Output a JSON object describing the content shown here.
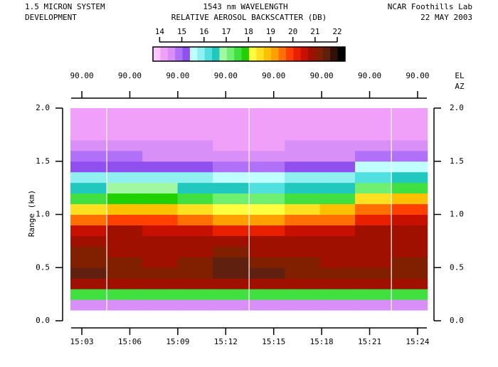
{
  "chart_data": {
    "type": "heatmap",
    "header_left": [
      "1.5 MICRON SYSTEM",
      "DEVELOPMENT"
    ],
    "title": "1543 nm WAVELENGTH",
    "subtitle": "RELATIVE AEROSOL BACKSCATTER (DB)",
    "header_right": [
      "NCAR Foothills Lab",
      "22 MAY 2003"
    ],
    "ylabel": "Range (km)",
    "top_axis_labels": [
      "90.00",
      "90.00",
      "90.00",
      "90.00",
      "90.00",
      "90.00",
      "90.00",
      "90.00"
    ],
    "top_axis_names": [
      "EL",
      "AZ"
    ],
    "colorbar": {
      "lim": [
        13.7,
        22.35
      ],
      "ticks": [
        14,
        15,
        16,
        17,
        18,
        19,
        20,
        21,
        22
      ],
      "colors": [
        "#ffc8ff",
        "#f0a0f8",
        "#d890f8",
        "#b070f8",
        "#9050f0",
        "#c0ffff",
        "#90f0f0",
        "#50e0e0",
        "#20c8c0",
        "#a0f8a0",
        "#70f070",
        "#40e040",
        "#20d000",
        "#ffff40",
        "#ffe020",
        "#ffc000",
        "#ffa000",
        "#ff7000",
        "#ff4000",
        "#e82000",
        "#c81000",
        "#a01000",
        "#802000",
        "#602010",
        "#301008",
        "#000000"
      ]
    },
    "x": [
      903.4,
      905.7,
      907.9,
      910.1,
      912.3,
      914.6,
      916.8,
      919.0,
      921.2,
      923.5
    ],
    "xlim": [
      902.33,
      924.58
    ],
    "xticks": [
      {
        "value": 903,
        "label": "15:03"
      },
      {
        "value": 906,
        "label": "15:06"
      },
      {
        "value": 909,
        "label": "15:09"
      },
      {
        "value": 912,
        "label": "15:12"
      },
      {
        "value": 915,
        "label": "15:15"
      },
      {
        "value": 918,
        "label": "15:18"
      },
      {
        "value": 921,
        "label": "15:21"
      },
      {
        "value": 924,
        "label": "15:24"
      }
    ],
    "y": [
      0.05,
      0.15,
      0.25,
      0.35,
      0.45,
      0.55,
      0.65,
      0.75,
      0.85,
      0.95,
      1.05,
      1.15,
      1.25,
      1.35,
      1.45,
      1.55,
      1.65,
      1.75,
      1.85,
      1.95
    ],
    "ylim": [
      0,
      2.0
    ],
    "yticks": [
      {
        "value": 0,
        "label": "0.0"
      },
      0.5,
      {
        "value": 1,
        "label": "1.0"
      },
      1.5,
      {
        "value": 2,
        "label": "2.0"
      }
    ],
    "values": [
      [
        null,
        null,
        null,
        null,
        null,
        null,
        null,
        null,
        null,
        null
      ],
      [
        14.5,
        14.5,
        14.6,
        14.5,
        14.5,
        14.6,
        14.5,
        14.5,
        14.6,
        14.5
      ],
      [
        17.5,
        17.6,
        17.4,
        17.5,
        17.6,
        17.5,
        17.4,
        17.5,
        17.6,
        17.5
      ],
      [
        20.8,
        20.9,
        20.7,
        20.8,
        20.9,
        20.8,
        20.8,
        20.7,
        20.9,
        20.8
      ],
      [
        21.4,
        21.3,
        21.2,
        21.3,
        21.5,
        21.4,
        21.2,
        21.3,
        21.2,
        21.3
      ],
      [
        21.3,
        21.1,
        21.0,
        21.2,
        21.4,
        21.3,
        21.1,
        21.0,
        21.0,
        21.1
      ],
      [
        21.1,
        21.0,
        20.9,
        21.0,
        21.1,
        21.0,
        21.0,
        20.9,
        20.9,
        21.0
      ],
      [
        20.9,
        20.8,
        20.8,
        20.9,
        20.8,
        20.7,
        20.8,
        20.8,
        20.8,
        20.9
      ],
      [
        20.5,
        20.7,
        20.6,
        20.5,
        20.3,
        20.2,
        20.4,
        20.5,
        20.7,
        20.8
      ],
      [
        19.4,
        19.9,
        19.8,
        19.6,
        19.2,
        19.1,
        19.4,
        19.6,
        20.3,
        20.5
      ],
      [
        18.4,
        18.9,
        18.8,
        18.6,
        18.2,
        18.1,
        18.4,
        18.7,
        19.6,
        19.8
      ],
      [
        17.5,
        17.8,
        17.7,
        17.6,
        17.3,
        17.2,
        17.4,
        17.6,
        18.5,
        18.9
      ],
      [
        16.6,
        16.8,
        16.7,
        16.6,
        16.4,
        16.3,
        16.5,
        16.6,
        17.2,
        17.6
      ],
      [
        15.8,
        16.0,
        15.9,
        15.8,
        15.6,
        15.6,
        15.7,
        15.8,
        16.2,
        16.4
      ],
      [
        15.2,
        15.3,
        15.2,
        15.2,
        15.0,
        15.0,
        15.1,
        15.2,
        15.4,
        15.5
      ],
      [
        14.7,
        14.7,
        14.6,
        14.6,
        14.5,
        14.5,
        14.6,
        14.6,
        14.7,
        14.8
      ],
      [
        14.4,
        14.4,
        14.4,
        14.4,
        14.3,
        14.3,
        14.4,
        14.4,
        14.4,
        14.5
      ],
      [
        14.3,
        14.3,
        14.3,
        14.3,
        14.2,
        14.2,
        14.3,
        14.3,
        14.3,
        14.3
      ],
      [
        14.2,
        14.2,
        14.2,
        14.2,
        14.2,
        14.2,
        14.2,
        14.2,
        14.2,
        14.2
      ],
      [
        14.2,
        14.2,
        14.2,
        14.2,
        14.1,
        14.1,
        14.2,
        14.2,
        14.2,
        14.2
      ]
    ]
  }
}
